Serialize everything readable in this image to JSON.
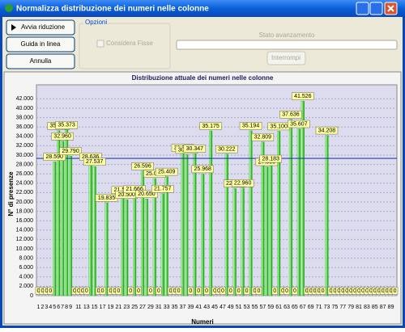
{
  "window": {
    "title": "Normalizza distribuzione dei numeri nelle colonne",
    "buttons": [
      "Avvia riduzione",
      "Guida in linea",
      "Annulla"
    ],
    "options_group": "Opzioni",
    "checkbox": "Considera Fisse",
    "progress_label": "Stato avanzamento",
    "stop_button": "Interrompi"
  },
  "chart_data": {
    "type": "bar",
    "title": "Distribuzione attuale dei numeri nelle colonne",
    "x_label": "Numeri",
    "y_label": "N° di presenze",
    "categories": [
      "1",
      "2",
      "3",
      "4",
      "5",
      "6",
      "7",
      "8",
      "9",
      null,
      "11",
      null,
      "13",
      null,
      "15",
      null,
      "17",
      null,
      "19",
      null,
      "21",
      null,
      "23",
      null,
      "25",
      null,
      "27",
      null,
      "29",
      null,
      "31",
      null,
      "33",
      null,
      "35",
      null,
      "37",
      null,
      "39",
      null,
      "41",
      null,
      "43",
      null,
      "45",
      null,
      "47",
      null,
      "49",
      null,
      "51",
      null,
      "53",
      null,
      "55",
      null,
      "57",
      null,
      "59",
      null,
      "61",
      null,
      "63",
      null,
      "65",
      null,
      "67",
      null,
      "69",
      null,
      "71",
      null,
      "73",
      null,
      "75",
      null,
      "77",
      null,
      "79",
      null,
      "81",
      null,
      "83",
      null,
      "85",
      null,
      "87",
      null,
      "89",
      null
    ],
    "values": [
      0,
      0,
      0,
      0,
      28590,
      35200,
      32960,
      35373,
      29790,
      0,
      0,
      0,
      0,
      28636,
      27537,
      0,
      0,
      19835,
      0,
      0,
      0,
      21500,
      20500,
      0,
      21666,
      0,
      26596,
      20650,
      0,
      25000,
      0,
      21757,
      25409,
      0,
      0,
      0,
      30500,
      30100,
      0,
      30347,
      0,
      25968,
      0,
      35175,
      0,
      0,
      0,
      30222,
      0,
      22900,
      0,
      22960,
      0,
      35194,
      0,
      0,
      32809,
      27500,
      28183,
      0,
      35100,
      0,
      0,
      37636,
      0,
      35607,
      41526,
      0,
      0,
      0,
      0,
      0,
      34208,
      0,
      0,
      0,
      0,
      0,
      0,
      0,
      0,
      0,
      0,
      0,
      0,
      0,
      0,
      0,
      0,
      0
    ],
    "value_labels": [
      "0",
      "0",
      "0",
      "0",
      "28.590",
      "35.200",
      "32.960",
      "35.373",
      "29.790",
      "0",
      "0",
      "0",
      "0",
      "28.636",
      "27.537",
      "0",
      "0",
      "19.835",
      "0",
      "0",
      "0",
      "21.500",
      "20.500",
      "0",
      "21.666",
      "0",
      "26.596",
      "20.650",
      "0",
      "25.000",
      "0",
      "21.757",
      "25.409",
      "0",
      "0",
      "0",
      "30.500",
      "30.100",
      "0",
      "30.347",
      "0",
      "25.968",
      "0",
      "35.175",
      "0",
      "0",
      "0",
      "30.222",
      "0",
      "22.900",
      "0",
      "22.960",
      "0",
      "35.194",
      "0",
      "0",
      "32.809",
      "27.500",
      "28.183",
      "0",
      "35.100",
      "0",
      "0",
      "37.636",
      "0",
      "35.607",
      "41.526",
      "0",
      "0",
      "0",
      "0",
      "0",
      "34.208",
      "0",
      "0",
      "0",
      "0",
      "0",
      "0",
      "0",
      "0",
      "0",
      "0",
      "0",
      "0",
      "0",
      "0",
      "0",
      "0",
      "0"
    ],
    "color": "#2fb52f",
    "average_line": 29300,
    "average_color": "#1f3fb0",
    "ylim": [
      0,
      45000
    ],
    "yticks": [
      0,
      {
        "value": 2000,
        "label": "2.000"
      },
      {
        "value": 4000,
        "label": "4.000"
      },
      {
        "value": 6000,
        "label": "6.000"
      },
      {
        "value": 8000,
        "label": "8.000"
      },
      {
        "value": 10000,
        "label": "10.000"
      },
      {
        "value": 12000,
        "label": "12.000"
      },
      {
        "value": 14000,
        "label": "14.000"
      },
      {
        "value": 16000,
        "label": "16.000"
      },
      {
        "value": 18000,
        "label": "18.000"
      },
      {
        "value": 20000,
        "label": "20.000"
      },
      {
        "value": 22000,
        "label": "22.000"
      },
      {
        "value": 24000,
        "label": "24.000"
      },
      {
        "value": 26000,
        "label": "26.000"
      },
      {
        "value": 28000,
        "label": "28.000"
      },
      {
        "value": 30000,
        "label": "30.000"
      },
      {
        "value": 32000,
        "label": "32.000"
      },
      {
        "value": 34000,
        "label": "34.000"
      },
      {
        "value": 36000,
        "label": "36.000"
      },
      {
        "value": 38000,
        "label": "38.000"
      },
      {
        "value": 40000,
        "label": "40.000"
      },
      {
        "value": 42000,
        "label": "42.000"
      }
    ],
    "grid": true
  }
}
